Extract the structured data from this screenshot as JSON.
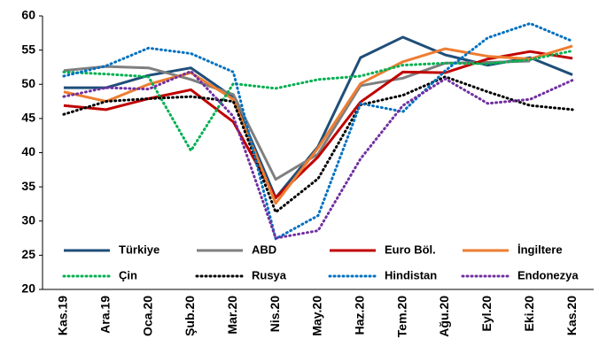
{
  "chart_data": {
    "type": "line",
    "categories": [
      "Kas.19",
      "Ara.19",
      "Oca.20",
      "Şub.20",
      "Mar.20",
      "Nis.20",
      "May.20",
      "Haz.20",
      "Tem.20",
      "Ağu.20",
      "Eyl.20",
      "Eki.20",
      "Kas.20"
    ],
    "series": [
      {
        "name": "Türkiye",
        "color": "#1f4e79",
        "style": "solid",
        "values": [
          49.5,
          49.5,
          51.3,
          52.4,
          48.1,
          33.4,
          40.9,
          53.9,
          56.9,
          54.3,
          52.8,
          53.9,
          51.4
        ]
      },
      {
        "name": "ABD",
        "color": "#7f7f7f",
        "style": "solid",
        "values": [
          52.0,
          52.6,
          52.4,
          50.7,
          48.5,
          36.1,
          39.8,
          49.8,
          50.9,
          53.1,
          53.2,
          53.4,
          null
        ]
      },
      {
        "name": "Euro Böl.",
        "color": "#c00000",
        "style": "solid",
        "values": [
          46.9,
          46.3,
          47.9,
          49.2,
          44.5,
          33.4,
          39.4,
          47.4,
          51.8,
          51.7,
          53.7,
          54.8,
          53.8
        ]
      },
      {
        "name": "İngiltere",
        "color": "#ed7d31",
        "style": "solid",
        "values": [
          48.9,
          47.5,
          50.0,
          51.7,
          47.8,
          32.6,
          40.7,
          50.1,
          53.3,
          55.2,
          54.1,
          53.7,
          55.6
        ]
      },
      {
        "name": "Çin",
        "color": "#00b050",
        "style": "dotted",
        "values": [
          51.8,
          51.5,
          51.1,
          40.3,
          50.1,
          49.4,
          50.7,
          51.2,
          52.8,
          53.1,
          53.0,
          53.6,
          54.9
        ]
      },
      {
        "name": "Rusya",
        "color": "#000000",
        "style": "dotted",
        "values": [
          45.6,
          47.5,
          47.9,
          48.2,
          47.5,
          31.3,
          36.2,
          47.0,
          48.4,
          51.1,
          48.9,
          46.9,
          46.3
        ]
      },
      {
        "name": "Hindistan",
        "color": "#0070c0",
        "style": "dotted",
        "values": [
          51.2,
          52.7,
          55.3,
          54.5,
          51.8,
          27.4,
          30.8,
          47.2,
          46.0,
          52.0,
          56.8,
          58.9,
          56.3
        ]
      },
      {
        "name": "Endonezya",
        "color": "#7030a0",
        "style": "dotted",
        "values": [
          48.2,
          49.5,
          49.3,
          51.9,
          45.3,
          27.5,
          28.6,
          39.1,
          46.9,
          50.8,
          47.2,
          47.8,
          50.6
        ]
      }
    ],
    "ylim": [
      20,
      60
    ],
    "yticks": [
      20,
      25,
      30,
      35,
      40,
      45,
      50,
      55,
      60
    ]
  }
}
